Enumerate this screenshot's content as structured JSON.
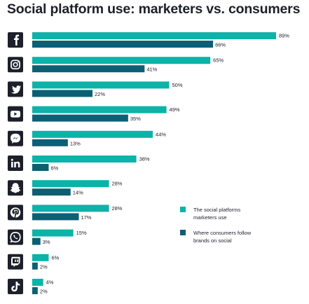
{
  "title": "Social platform use: marketers vs. consumers",
  "colors": {
    "marketers": "#0bb3a8",
    "consumers": "#0d5f74",
    "icon_bg": "#1d1f2a",
    "text": "#1d1f2a"
  },
  "chart_data": {
    "type": "bar",
    "orientation": "horizontal",
    "title": "Social platform use: marketers vs. consumers",
    "xlabel": "",
    "ylabel": "",
    "xlim": [
      0,
      100
    ],
    "grid": false,
    "legend_position": "right",
    "categories": [
      "facebook",
      "instagram",
      "twitter",
      "youtube",
      "messenger",
      "linkedin",
      "snapchat",
      "pinterest",
      "whatsapp",
      "twitch",
      "tiktok"
    ],
    "icons": [
      "facebook-icon",
      "instagram-icon",
      "twitter-icon",
      "youtube-icon",
      "messenger-icon",
      "linkedin-icon",
      "snapchat-icon",
      "pinterest-icon",
      "whatsapp-icon",
      "twitch-icon",
      "tiktok-icon"
    ],
    "series": [
      {
        "name": "The social platforms marketers use",
        "values": [
          89,
          65,
          50,
          49,
          44,
          38,
          28,
          28,
          15,
          6,
          4
        ],
        "labels": [
          "89%",
          "65%",
          "50%",
          "49%",
          "44%",
          "38%",
          "28%",
          "28%",
          "15%",
          "6%",
          "4%"
        ]
      },
      {
        "name": "Where consumers follow brands on social",
        "values": [
          66,
          41,
          22,
          35,
          13,
          6,
          14,
          17,
          3,
          2,
          2
        ],
        "labels": [
          "66%",
          "41%",
          "22%",
          "35%",
          "13%",
          "6%",
          "14%",
          "17%",
          "3%",
          "2%",
          "2%"
        ]
      }
    ],
    "legend": [
      [
        "The social platforms",
        "marketers use"
      ],
      [
        "Where consumers follow",
        "brands on social"
      ]
    ]
  }
}
